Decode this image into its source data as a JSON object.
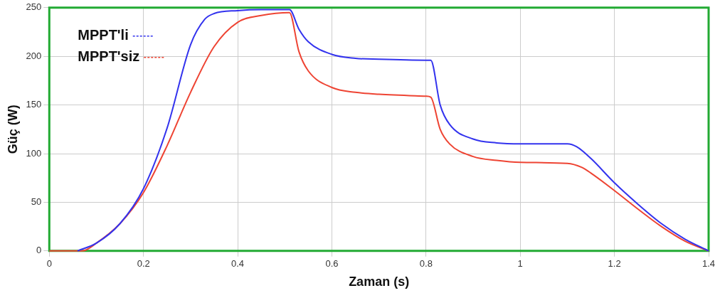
{
  "chart_data": {
    "type": "line",
    "xlabel": "Zaman (s)",
    "ylabel": "Güç (W)",
    "xlim": [
      0,
      1.4
    ],
    "xticks": [
      0,
      0.2,
      0.4,
      0.6,
      0.8,
      1,
      1.2,
      1.4
    ],
    "ylim": [
      0,
      250
    ],
    "yticks": [
      0,
      50,
      100,
      150,
      200,
      250
    ],
    "grid": true,
    "legend": "top left",
    "marker": "none",
    "line_style": "solid",
    "series": [
      {
        "name": "MPPT'li",
        "color": "#3333ee",
        "x": [
          0.06,
          0.1,
          0.15,
          0.2,
          0.25,
          0.3,
          0.33,
          0.35,
          0.4,
          0.45,
          0.51,
          0.53,
          0.55,
          0.6,
          0.65,
          0.7,
          0.8,
          0.81,
          0.83,
          0.85,
          0.9,
          0.95,
          1.0,
          1.1,
          1.12,
          1.15,
          1.2,
          1.25,
          1.3,
          1.35,
          1.4
        ],
        "values": [
          0,
          8,
          28,
          64,
          126,
          212,
          238,
          244,
          247,
          248,
          248,
          228,
          215,
          202,
          198,
          197,
          196,
          196,
          150,
          130,
          115,
          111,
          110,
          110,
          107,
          95,
          70,
          48,
          28,
          12,
          0
        ]
      },
      {
        "name": "MPPT'siz",
        "color": "#ee4433",
        "x": [
          0,
          0.07,
          0.1,
          0.15,
          0.2,
          0.25,
          0.3,
          0.35,
          0.4,
          0.45,
          0.51,
          0.53,
          0.55,
          0.6,
          0.65,
          0.7,
          0.8,
          0.81,
          0.83,
          0.85,
          0.9,
          0.95,
          1.0,
          1.1,
          1.13,
          1.15,
          1.2,
          1.25,
          1.3,
          1.35,
          1.4
        ],
        "values": [
          0,
          0,
          8,
          28,
          60,
          108,
          163,
          210,
          235,
          242,
          245,
          205,
          185,
          168,
          163,
          161,
          159,
          158,
          125,
          110,
          97,
          93,
          91,
          90,
          86,
          80,
          62,
          43,
          25,
          10,
          0
        ]
      }
    ]
  }
}
